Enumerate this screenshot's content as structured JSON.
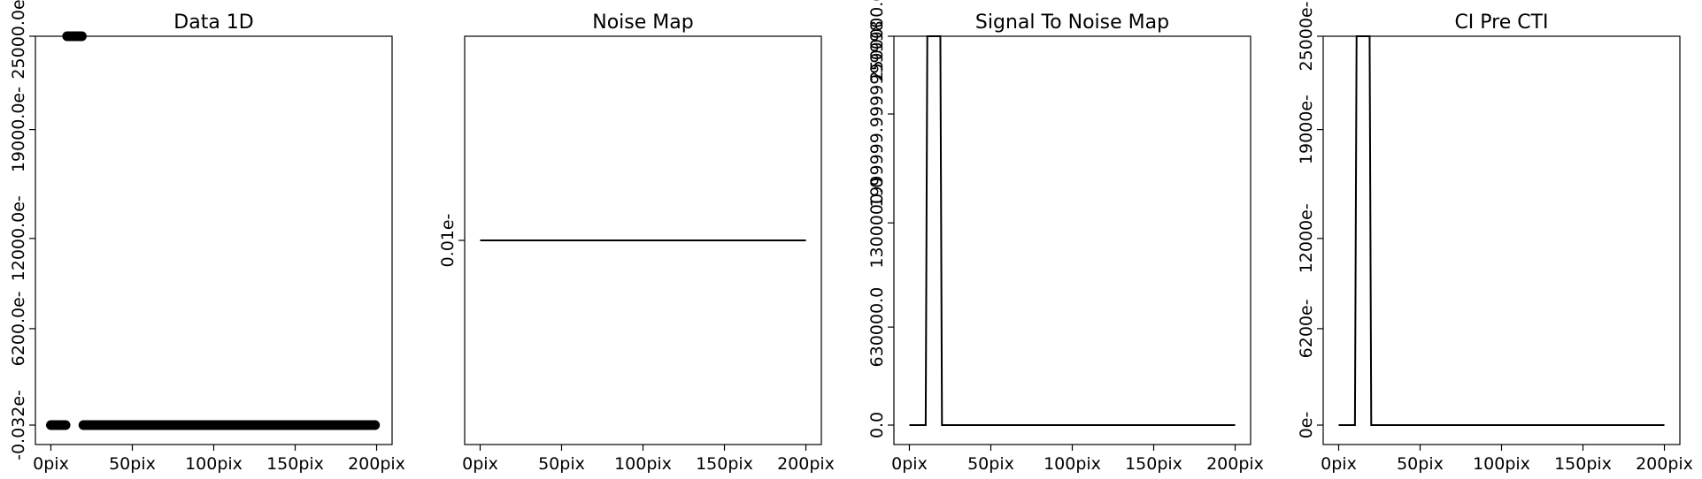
{
  "chart_data": [
    {
      "type": "scatter",
      "title": "Data 1D",
      "x_ticks": [
        0,
        50,
        100,
        150,
        200
      ],
      "x_tick_labels": [
        "0pix",
        "50pix",
        "100pix",
        "150pix",
        "200pix"
      ],
      "y_ticks": [
        -0.032,
        6200,
        12000,
        19000,
        25000
      ],
      "y_tick_labels": [
        "-0.032e-",
        "6200.0e-",
        "12000.0e-",
        "19000.0e-",
        "25000.0e-"
      ],
      "xlim": [
        -9.5,
        209.5
      ],
      "ylim": [
        -1250,
        25000
      ],
      "series": [
        {
          "style": "markers",
          "points": [
            {
              "x_from": 0,
              "x_to": 10,
              "y": 0
            },
            {
              "x_from": 10,
              "x_to": 20,
              "y": 25000
            },
            {
              "x_from": 20,
              "x_to": 200,
              "y": 0
            }
          ]
        }
      ]
    },
    {
      "type": "line",
      "title": "Noise Map",
      "x_ticks": [
        0,
        50,
        100,
        150,
        200
      ],
      "x_tick_labels": [
        "0pix",
        "50pix",
        "100pix",
        "150pix",
        "200pix"
      ],
      "y_ticks": [
        0.01
      ],
      "y_tick_labels": [
        "0.01e-"
      ],
      "xlim": [
        -9.5,
        209.5
      ],
      "ylim": [
        -0.04,
        0.06
      ],
      "series": [
        {
          "style": "line",
          "x": [
            0,
            200
          ],
          "y": [
            0.01,
            0.01
          ]
        }
      ]
    },
    {
      "type": "line",
      "title": "Signal To Noise Map",
      "x_ticks": [
        0,
        50,
        100,
        150,
        200
      ],
      "x_tick_labels": [
        "0pix",
        "50pix",
        "100pix",
        "150pix",
        "200pix"
      ],
      "y_ticks": [
        0,
        630000,
        1300000,
        1999999.9999,
        2500000
      ],
      "y_tick_labels": [
        "0.0",
        "630000.0",
        "1300000.0",
        "1999999.9999999998",
        "2500000.0"
      ],
      "xlim": [
        -9.5,
        209.5
      ],
      "ylim": [
        -125000,
        2500000
      ],
      "series": [
        {
          "style": "line",
          "x": [
            0,
            10,
            11,
            19,
            20,
            200
          ],
          "y": [
            0,
            0,
            2500000,
            2500000,
            0,
            0
          ]
        }
      ]
    },
    {
      "type": "line",
      "title": "CI Pre CTI",
      "x_ticks": [
        0,
        50,
        100,
        150,
        200
      ],
      "x_tick_labels": [
        "0pix",
        "50pix",
        "100pix",
        "150pix",
        "200pix"
      ],
      "y_ticks": [
        0,
        6200,
        12000,
        19000,
        25000
      ],
      "y_tick_labels": [
        "0e-",
        "6200e-",
        "12000e-",
        "19000e-",
        "25000e-"
      ],
      "xlim": [
        -9.5,
        209.5
      ],
      "ylim": [
        -1250,
        25000
      ],
      "series": [
        {
          "style": "line",
          "x": [
            0,
            10,
            11,
            19,
            20,
            200
          ],
          "y": [
            0,
            0,
            25000,
            25000,
            0,
            0
          ]
        }
      ]
    }
  ]
}
